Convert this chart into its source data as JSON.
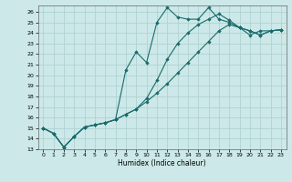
{
  "xlabel": "Humidex (Indice chaleur)",
  "bg_color": "#cce8e8",
  "grid_color": "#aacfcf",
  "line_color": "#1a6b6b",
  "xlim": [
    -0.5,
    23.5
  ],
  "ylim": [
    13,
    26.6
  ],
  "xticks": [
    0,
    1,
    2,
    3,
    4,
    5,
    6,
    7,
    8,
    9,
    10,
    11,
    12,
    13,
    14,
    15,
    16,
    17,
    18,
    19,
    20,
    21,
    22,
    23
  ],
  "yticks": [
    13,
    14,
    15,
    16,
    17,
    18,
    19,
    20,
    21,
    22,
    23,
    24,
    25,
    26
  ],
  "lines": [
    {
      "x": [
        0,
        1,
        2,
        3,
        4,
        5,
        6,
        7,
        8,
        9,
        10,
        11,
        12,
        13,
        14,
        15,
        16,
        17,
        18,
        19,
        20,
        21,
        22,
        23
      ],
      "y": [
        15,
        14.5,
        13.2,
        14.2,
        15.1,
        15.3,
        15.5,
        15.8,
        20.5,
        22.2,
        21.2,
        25.0,
        26.4,
        25.5,
        25.3,
        25.3,
        26.4,
        25.3,
        25.0,
        24.5,
        23.8,
        24.2,
        24.2,
        24.3
      ]
    },
    {
      "x": [
        0,
        1,
        2,
        3,
        4,
        5,
        6,
        7,
        8,
        9,
        10,
        11,
        12,
        13,
        14,
        15,
        16,
        17,
        18,
        19,
        20,
        21,
        22,
        23
      ],
      "y": [
        15,
        14.5,
        13.2,
        14.2,
        15.1,
        15.3,
        15.5,
        15.8,
        16.3,
        16.8,
        17.8,
        19.5,
        21.5,
        23.0,
        24.0,
        24.8,
        25.3,
        25.8,
        25.2,
        24.5,
        24.2,
        23.8,
        24.2,
        24.3
      ]
    },
    {
      "x": [
        0,
        1,
        2,
        3,
        4,
        5,
        6,
        7,
        8,
        9,
        10,
        11,
        12,
        13,
        14,
        15,
        16,
        17,
        18,
        19,
        20,
        21,
        22,
        23
      ],
      "y": [
        15,
        14.5,
        13.2,
        14.2,
        15.1,
        15.3,
        15.5,
        15.8,
        16.3,
        16.8,
        17.5,
        18.3,
        19.2,
        20.2,
        21.2,
        22.2,
        23.2,
        24.2,
        24.8,
        24.5,
        24.2,
        23.8,
        24.2,
        24.3
      ]
    }
  ],
  "marker": "D",
  "markersize": 1.8,
  "linewidth": 0.8
}
